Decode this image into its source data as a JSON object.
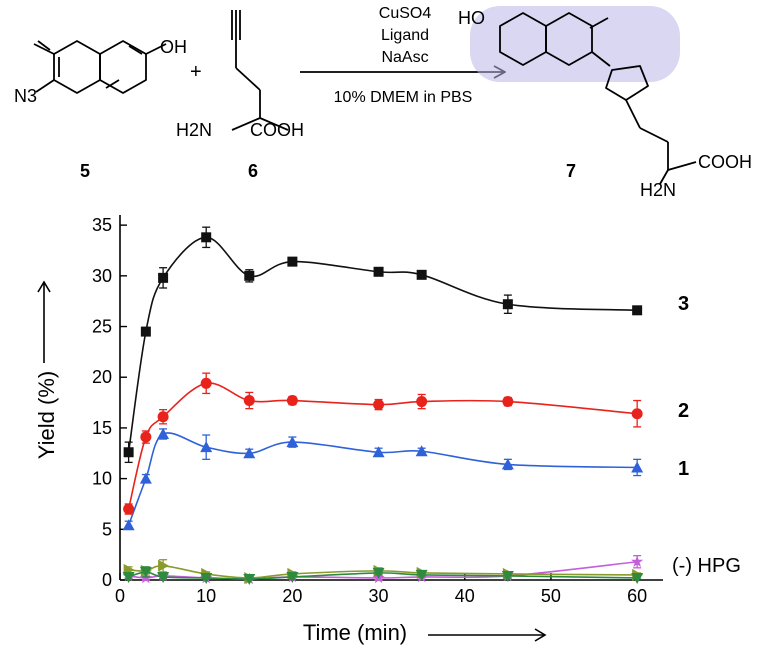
{
  "scheme": {
    "reagents": [
      "CuSO4",
      "Ligand",
      "NaAsc"
    ],
    "conditions": "10% DMEM in PBS",
    "plus": "+",
    "compound_5": {
      "number": "5",
      "labels": {
        "oh": "OH",
        "n3": "N3"
      }
    },
    "compound_6": {
      "number": "6",
      "labels": {
        "h2n": "H2N",
        "cooh": "COOH"
      }
    },
    "compound_7": {
      "number": "7",
      "labels": {
        "ho": "HO",
        "cooh": "COOH",
        "h2n": "H2N"
      }
    }
  },
  "chart_data": {
    "type": "line",
    "xlabel": "Time (min)",
    "ylabel": "Yield (%)",
    "xlim": [
      0,
      63
    ],
    "ylim": [
      0,
      36
    ],
    "xticks": [
      0,
      10,
      20,
      30,
      40,
      50,
      60
    ],
    "yticks": [
      0,
      5,
      10,
      15,
      20,
      25,
      30,
      35
    ],
    "series": [
      {
        "name": "3",
        "color": "#111111",
        "marker": "square",
        "x": [
          1,
          3,
          5,
          10,
          15,
          20,
          30,
          35,
          45,
          60
        ],
        "y": [
          12.6,
          24.5,
          29.8,
          33.8,
          30.0,
          31.4,
          30.4,
          30.1,
          27.2,
          26.6
        ],
        "err": [
          1.0,
          0.4,
          1.0,
          1.0,
          0.6,
          0.4,
          0.4,
          0.3,
          0.9,
          0.3
        ]
      },
      {
        "name": "2",
        "color": "#e8231c",
        "marker": "circle",
        "x": [
          1,
          3,
          5,
          10,
          15,
          20,
          30,
          35,
          45,
          60
        ],
        "y": [
          7.0,
          14.1,
          16.1,
          19.4,
          17.7,
          17.7,
          17.3,
          17.6,
          17.6,
          16.4
        ],
        "err": [
          0.5,
          0.6,
          0.7,
          1.0,
          0.8,
          0.4,
          0.5,
          0.7,
          0.4,
          1.3
        ]
      },
      {
        "name": "1",
        "color": "#2f62d8",
        "marker": "triangle",
        "x": [
          1,
          3,
          5,
          10,
          15,
          20,
          30,
          35,
          45,
          60
        ],
        "y": [
          5.4,
          10.0,
          14.4,
          13.1,
          12.5,
          13.6,
          12.6,
          12.7,
          11.4,
          11.1
        ],
        "err": [
          0.4,
          0.4,
          0.5,
          1.2,
          0.4,
          0.5,
          0.4,
          0.3,
          0.5,
          0.8
        ]
      },
      {
        "name": "(-) HPG",
        "color": "#c45edb",
        "marker": "star",
        "x": [
          1,
          3,
          5,
          10,
          15,
          20,
          30,
          35,
          45,
          60
        ],
        "y": [
          0.4,
          0.2,
          0.4,
          0.2,
          0.1,
          0.3,
          0.2,
          0.3,
          0.4,
          1.8
        ],
        "err": [
          0.2,
          0.2,
          0.2,
          0.1,
          0.1,
          0.2,
          0.2,
          0.2,
          0.2,
          0.6
        ]
      },
      {
        "name": "",
        "color": "#8a9a2c",
        "marker": "triangle-right",
        "x": [
          1,
          3,
          5,
          10,
          15,
          20,
          30,
          35,
          45,
          60
        ],
        "y": [
          1.0,
          0.9,
          1.4,
          0.6,
          0.2,
          0.6,
          0.9,
          0.7,
          0.6,
          0.5
        ],
        "err": [
          0.3,
          0.3,
          0.6,
          0.2,
          0.1,
          0.2,
          0.3,
          0.2,
          0.2,
          0.2
        ]
      },
      {
        "name": "",
        "color": "#2e8b3e",
        "marker": "triangle-down",
        "x": [
          1,
          3,
          5,
          10,
          15,
          20,
          30,
          35,
          45,
          60
        ],
        "y": [
          0.3,
          0.8,
          0.3,
          0.2,
          0.1,
          0.3,
          0.7,
          0.5,
          0.4,
          0.2
        ],
        "err": [
          0.2,
          0.5,
          0.2,
          0.1,
          0.1,
          0.2,
          0.2,
          0.2,
          0.2,
          0.1
        ]
      }
    ]
  }
}
